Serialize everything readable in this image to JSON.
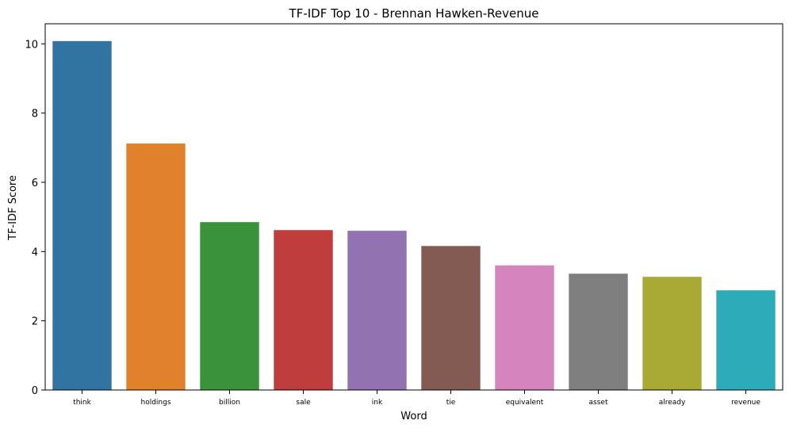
{
  "chart_data": {
    "type": "bar",
    "title": "TF-IDF Top 10 - Brennan Hawken-Revenue",
    "xlabel": "Word",
    "ylabel": "TF-IDF Score",
    "categories": [
      "think",
      "holdings",
      "billion",
      "sale",
      "ink",
      "tie",
      "equivalent",
      "asset",
      "already",
      "revenue"
    ],
    "values": [
      10.08,
      7.12,
      4.85,
      4.62,
      4.6,
      4.16,
      3.6,
      3.36,
      3.27,
      2.88
    ],
    "colors": [
      "#3274a1",
      "#e1812c",
      "#3a923a",
      "#c03d3e",
      "#9372b2",
      "#845b53",
      "#d684bd",
      "#7f7f7f",
      "#a9aa35",
      "#2eabb8"
    ],
    "ylim": [
      0,
      10.58
    ],
    "yticks": [
      0,
      2,
      4,
      6,
      8,
      10
    ],
    "grid": false,
    "legend": "none"
  }
}
